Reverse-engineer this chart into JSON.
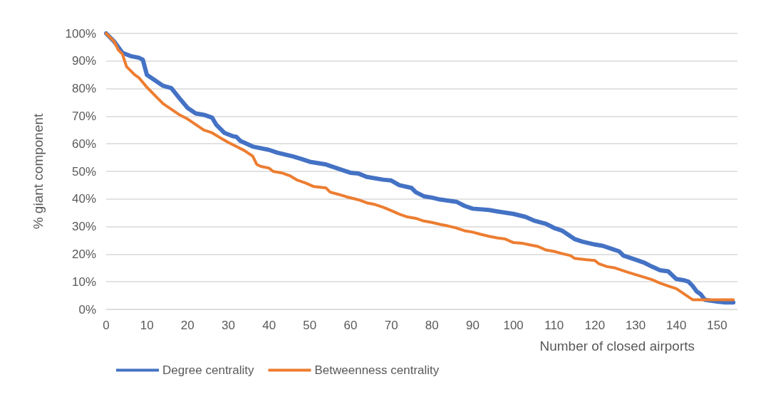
{
  "chart_data": {
    "type": "line",
    "xlabel": "Number of closed airports",
    "ylabel": "% giant component",
    "xlim": [
      0,
      155
    ],
    "xticks": [
      0,
      10,
      20,
      30,
      40,
      50,
      60,
      70,
      80,
      90,
      100,
      110,
      120,
      130,
      140,
      150
    ],
    "ylim": [
      0,
      100
    ],
    "yticks": [
      {
        "value": 0,
        "label": "0%"
      },
      {
        "value": 10,
        "label": "10%"
      },
      {
        "value": 20,
        "label": "20%"
      },
      {
        "value": 30,
        "label": "30%"
      },
      {
        "value": 40,
        "label": "40%"
      },
      {
        "value": 50,
        "label": "50%"
      },
      {
        "value": 60,
        "label": "60%"
      },
      {
        "value": 70,
        "label": "70%"
      },
      {
        "value": 80,
        "label": "80%"
      },
      {
        "value": 90,
        "label": "90%"
      },
      {
        "value": 100,
        "label": "100%"
      }
    ],
    "grid": "y",
    "legend": "bottom left",
    "marker": "none",
    "line_style": "solid",
    "series": [
      {
        "name": "Degree centrality",
        "color": "#4472c4",
        "x": [
          0,
          2,
          4,
          6,
          8,
          9,
          10,
          12,
          14,
          16,
          18,
          20,
          22,
          24,
          26,
          27,
          29,
          31,
          32,
          33,
          36,
          40,
          42,
          46,
          48,
          50,
          54,
          58,
          60,
          62,
          64,
          68,
          70,
          72,
          75,
          76,
          78,
          80,
          82,
          86,
          88,
          90,
          94,
          96,
          100,
          103,
          105,
          108,
          110,
          112,
          115,
          117,
          120,
          122,
          124,
          126,
          127,
          130,
          132,
          134,
          136,
          138,
          140,
          142,
          143,
          144,
          145,
          146,
          147,
          150,
          152,
          154
        ],
        "values": [
          100,
          97,
          93,
          91.8,
          91.2,
          90.5,
          85,
          83,
          81,
          80.2,
          76.5,
          73,
          71,
          70.5,
          69.5,
          67,
          64,
          62.8,
          62.5,
          61,
          59,
          57.8,
          56.8,
          55.4,
          54.5,
          53.5,
          52.5,
          50.5,
          49.5,
          49.2,
          48,
          47,
          46.7,
          45,
          44,
          42.5,
          41,
          40.5,
          39.8,
          39,
          37.5,
          36.5,
          36,
          35.5,
          34.6,
          33.5,
          32.2,
          31,
          29.5,
          28.5,
          25.5,
          24.5,
          23.5,
          23,
          22,
          21,
          19.5,
          18,
          17,
          15.5,
          14.2,
          13.8,
          11,
          10.5,
          10,
          8.5,
          6.5,
          5.5,
          3.5,
          2.8,
          2.5,
          2.5
        ]
      },
      {
        "name": "Betweenness centrality",
        "color": "#ed7d31",
        "x": [
          0,
          2,
          3,
          4,
          5,
          7,
          8,
          10,
          12,
          14,
          16,
          18,
          20,
          22,
          24,
          26,
          28,
          30,
          32,
          34,
          36,
          37,
          38,
          40,
          41,
          43,
          45,
          47,
          49,
          51,
          54,
          55,
          57,
          59,
          62,
          64,
          66,
          68,
          70,
          72,
          74,
          76,
          78,
          80,
          82,
          84,
          86,
          88,
          90,
          92,
          94,
          96,
          98,
          100,
          102,
          104,
          106,
          108,
          110,
          112,
          114,
          115,
          118,
          120,
          121,
          123,
          125,
          128,
          130,
          132,
          134,
          136,
          138,
          140,
          142,
          144,
          146,
          150,
          154
        ],
        "values": [
          100,
          97,
          94,
          92.5,
          88,
          85,
          84,
          80.5,
          77.5,
          74.5,
          72.5,
          70.5,
          69,
          67,
          65,
          64,
          62.2,
          60.5,
          59,
          57.5,
          55.5,
          52.5,
          51.8,
          51.2,
          50,
          49.5,
          48.5,
          46.8,
          45.8,
          44.5,
          44,
          42.5,
          41.7,
          40.8,
          39.7,
          38.6,
          38,
          37,
          35.8,
          34.5,
          33.5,
          33,
          32,
          31.5,
          30.8,
          30.2,
          29.5,
          28.5,
          28,
          27.2,
          26.5,
          25.9,
          25.5,
          24.2,
          24,
          23.4,
          22.8,
          21.5,
          21,
          20.2,
          19.5,
          18.5,
          18,
          17.7,
          16.5,
          15.5,
          15,
          13.5,
          12.6,
          11.7,
          10.8,
          9.5,
          8.5,
          7.5,
          5.5,
          3.5,
          3.5,
          3.5,
          3.5
        ]
      }
    ]
  }
}
